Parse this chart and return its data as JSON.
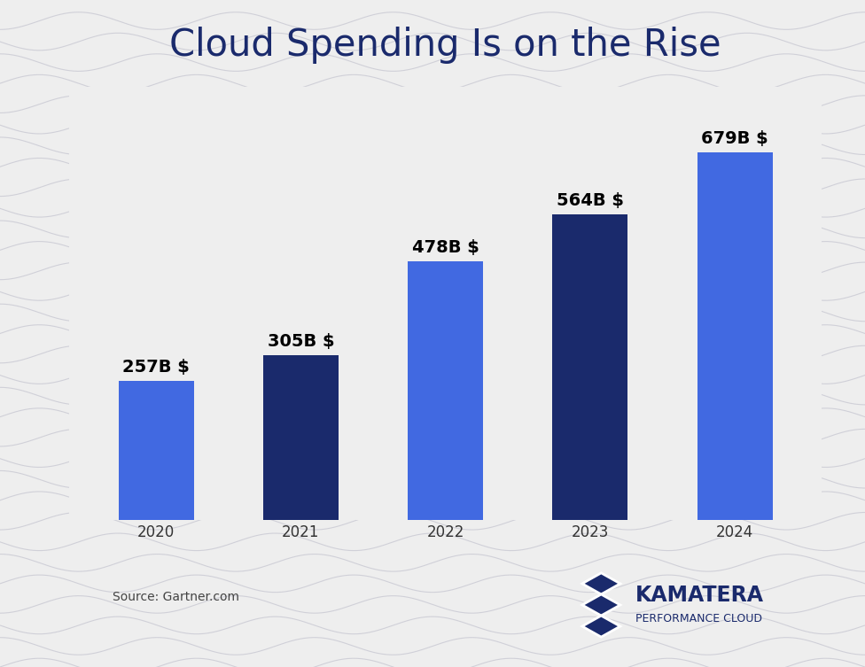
{
  "title": "Cloud Spending Is on the Rise",
  "categories": [
    "2020",
    "2021",
    "2022",
    "2023",
    "2024"
  ],
  "values": [
    257,
    305,
    478,
    564,
    679
  ],
  "labels": [
    "257B $",
    "305B $",
    "478B $",
    "564B $",
    "679B $"
  ],
  "bar_colors": [
    "#4169E1",
    "#1a2a6c",
    "#4169E1",
    "#1a2a6c",
    "#4169E1"
  ],
  "background_color": "#eeeeee",
  "title_color": "#1a2a6c",
  "label_color": "#000000",
  "source_text": "Source: Gartner.com",
  "xlabel_fontsize": 12,
  "title_fontsize": 30,
  "label_fontsize": 14,
  "ylim": [
    0,
    800
  ],
  "wave_color": "#d0d0d8",
  "kamatera_text": "KAMATERA",
  "kamatera_sub": "PERFORMANCE CLOUD",
  "kamatera_color": "#1a2a6c"
}
